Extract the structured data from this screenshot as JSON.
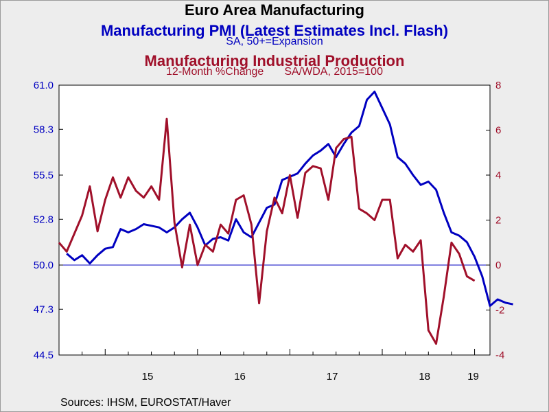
{
  "titles": {
    "main": "Euro Area Manufacturing",
    "pmi_title": "Manufacturing PMI (Latest Estimates Incl. Flash)",
    "pmi_subtitle": "SA, 50+=Expansion",
    "ip_title": "Manufacturing Industrial Production",
    "ip_subtitle_left": "12-Month %Change",
    "ip_subtitle_right": "SA/WDA, 2015=100"
  },
  "source": "Sources:  IHSM, EUROSTAT/Haver",
  "colors": {
    "pmi": "#0000c0",
    "ip": "#a0102a",
    "reference_line": "#0000c0"
  },
  "chart_data": {
    "type": "line",
    "x_axis": {
      "range": [
        "2014-07",
        "2019-03"
      ],
      "tick_labels": [
        "15",
        "16",
        "17",
        "18",
        "19"
      ]
    },
    "y_left": {
      "ylim": [
        44.5,
        61.0
      ],
      "ticks": [
        "44.5",
        "47.3",
        "50.0",
        "52.8",
        "55.5",
        "58.3",
        "61.0"
      ],
      "reference_line": 50.0
    },
    "y_right": {
      "ylim": [
        -4,
        8
      ],
      "ticks": [
        "-4",
        "-2",
        "0",
        "2",
        "4",
        "6",
        "8"
      ]
    },
    "grid": false,
    "series": [
      {
        "name": "Manufacturing PMI (Latest Estimates Incl. Flash)",
        "axis": "left",
        "start": "2014-08",
        "values": [
          50.7,
          50.3,
          50.6,
          50.1,
          50.6,
          51.0,
          51.1,
          52.2,
          52.0,
          52.2,
          52.5,
          52.4,
          52.3,
          52.0,
          52.3,
          52.8,
          53.2,
          52.3,
          51.2,
          51.6,
          51.7,
          51.5,
          52.8,
          52.0,
          51.7,
          52.6,
          53.5,
          53.7,
          55.2,
          55.4,
          55.6,
          56.2,
          56.7,
          57.0,
          57.4,
          56.6,
          57.4,
          58.1,
          58.5,
          60.1,
          60.6,
          59.6,
          58.6,
          56.6,
          56.2,
          55.5,
          54.9,
          55.1,
          54.6,
          53.2,
          52.0,
          51.8,
          51.4,
          50.5,
          49.3,
          47.5,
          47.9,
          47.7,
          47.6
        ]
      },
      {
        "name": "Manufacturing Industrial Production",
        "axis": "right",
        "start": "2014-07",
        "values": [
          1.0,
          0.6,
          1.4,
          2.2,
          3.5,
          1.5,
          2.9,
          3.9,
          3.0,
          3.9,
          3.3,
          3.0,
          3.5,
          2.9,
          6.5,
          1.9,
          -0.1,
          1.8,
          0.0,
          0.9,
          0.6,
          1.8,
          1.4,
          2.9,
          3.1,
          1.8,
          -1.7,
          1.5,
          3.0,
          2.3,
          4.0,
          2.1,
          4.1,
          4.4,
          4.3,
          2.9,
          5.2,
          5.6,
          5.7,
          2.5,
          2.3,
          2.0,
          2.9,
          2.9,
          0.3,
          0.9,
          0.6,
          1.1,
          -2.9,
          -3.5,
          -1.4,
          1.0,
          0.5,
          -0.5,
          -0.7
        ]
      }
    ]
  }
}
